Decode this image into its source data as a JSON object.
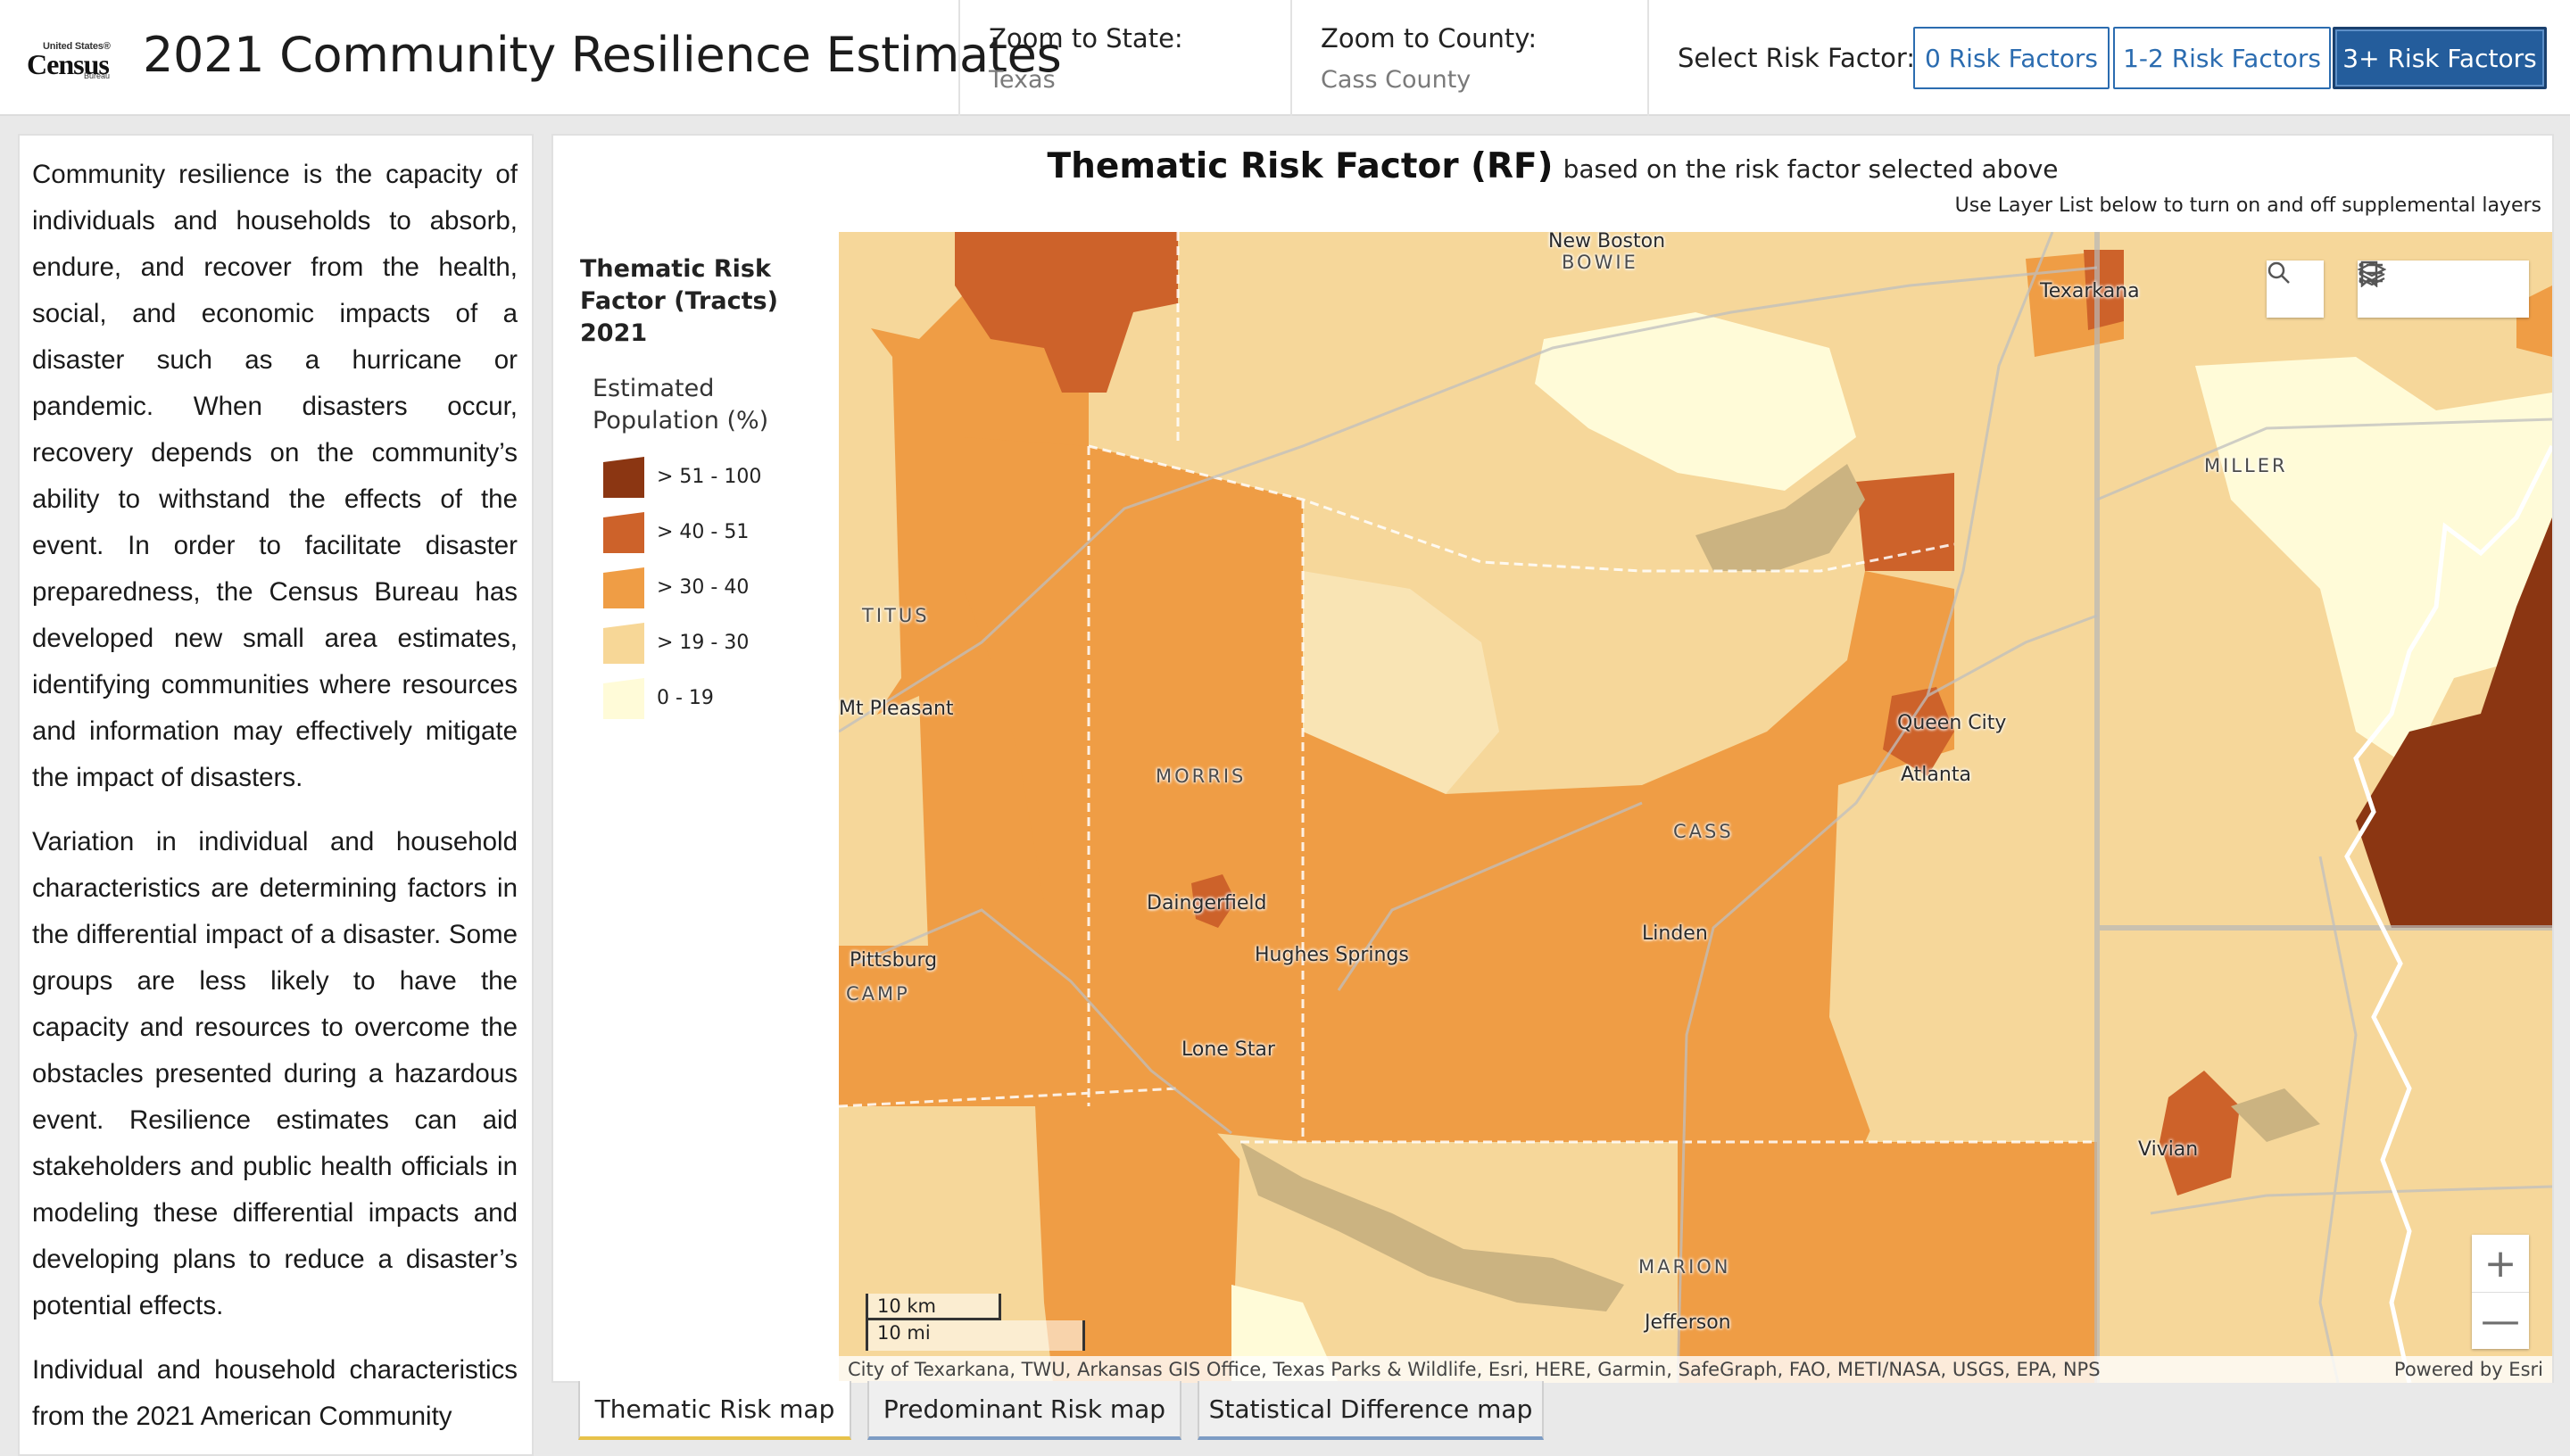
{
  "header": {
    "logo": {
      "line1": "United States®",
      "line2": "Census",
      "line3": "Bureau"
    },
    "title": "2021 Community Resilience Estimates",
    "zoom_state_label": "Zoom to State:",
    "zoom_state_value": "Texas",
    "zoom_county_label": "Zoom to County:",
    "zoom_county_value": "Cass County",
    "risk_factor_label": "Select Risk Factor:",
    "risk_buttons": [
      {
        "label": "0 Risk Factors",
        "active": false
      },
      {
        "label": "1-2 Risk Factors",
        "active": false
      },
      {
        "label": "3+ Risk Factors",
        "active": true
      }
    ]
  },
  "left_panel": {
    "paragraphs": [
      "Community resilience is the capacity of individuals and households to absorb, endure, and recover from the health, social, and economic impacts of a disaster such as a hurricane or pandemic.  When disasters occur, recovery depends on the community’s ability to withstand the effects of the event. In order to facilitate disaster preparedness, the Census Bureau has developed new small area estimates, identifying communities where resources and information may effectively mitigate the impact of disasters.",
      "Variation in individual and household characteristics are determining factors in the differential impact of a disaster. Some groups are less likely to have the capacity and resources to overcome the obstacles presented during a hazardous event.  Resilience estimates can aid stakeholders and public health officials in modeling these differential impacts and developing plans to reduce a disaster’s potential effects.",
      "Individual and household characteristics from the 2021 American Community"
    ]
  },
  "map_panel": {
    "title_strong": "Thematic Risk Factor (RF)",
    "title_sub": "based on the risk factor selected above",
    "layer_note": "Use Layer List below to turn on and off supplemental layers",
    "legend": {
      "title": "Thematic Risk Factor (Tracts) 2021",
      "subtitle": "Estimated Population (%)",
      "items": [
        {
          "label": "> 51 - 100",
          "color": "#8b3612"
        },
        {
          "label": "> 40 - 51",
          "color": "#cd622a"
        },
        {
          "label": "> 30 - 40",
          "color": "#ef9d45"
        },
        {
          "label": "> 19 - 30",
          "color": "#f7d797"
        },
        {
          "label": "0 - 19",
          "color": "#fffbd8"
        }
      ]
    },
    "labels": {
      "regions": [
        "BOWIE",
        "MILLER",
        "TITUS",
        "MORRIS",
        "CASS",
        "CAMP",
        "MARION"
      ],
      "cities": [
        "New Boston",
        "Texarkana",
        "Mt Pleasant",
        "Queen City",
        "Atlanta",
        "Daingerfield",
        "Hughes Springs",
        "Linden",
        "Pittsburg",
        "Lone Star",
        "Vivian",
        "Jefferson"
      ]
    },
    "scale": {
      "km": "10 km",
      "mi": "10 mi"
    },
    "attribution": "City of Texarkana, TWU, Arkansas GIS Office, Texas Parks & Wildlife, Esri, HERE, Garmin, SafeGraph, FAO, METI/NASA, USGS, EPA, NPS",
    "powered_by": "Powered by Esri",
    "zoom_in": "+",
    "zoom_out": "—"
  },
  "tabs": [
    {
      "label": "Thematic Risk map",
      "active": true
    },
    {
      "label": "Predominant Risk map",
      "active": false
    },
    {
      "label": "Statistical Difference map",
      "active": false
    }
  ]
}
